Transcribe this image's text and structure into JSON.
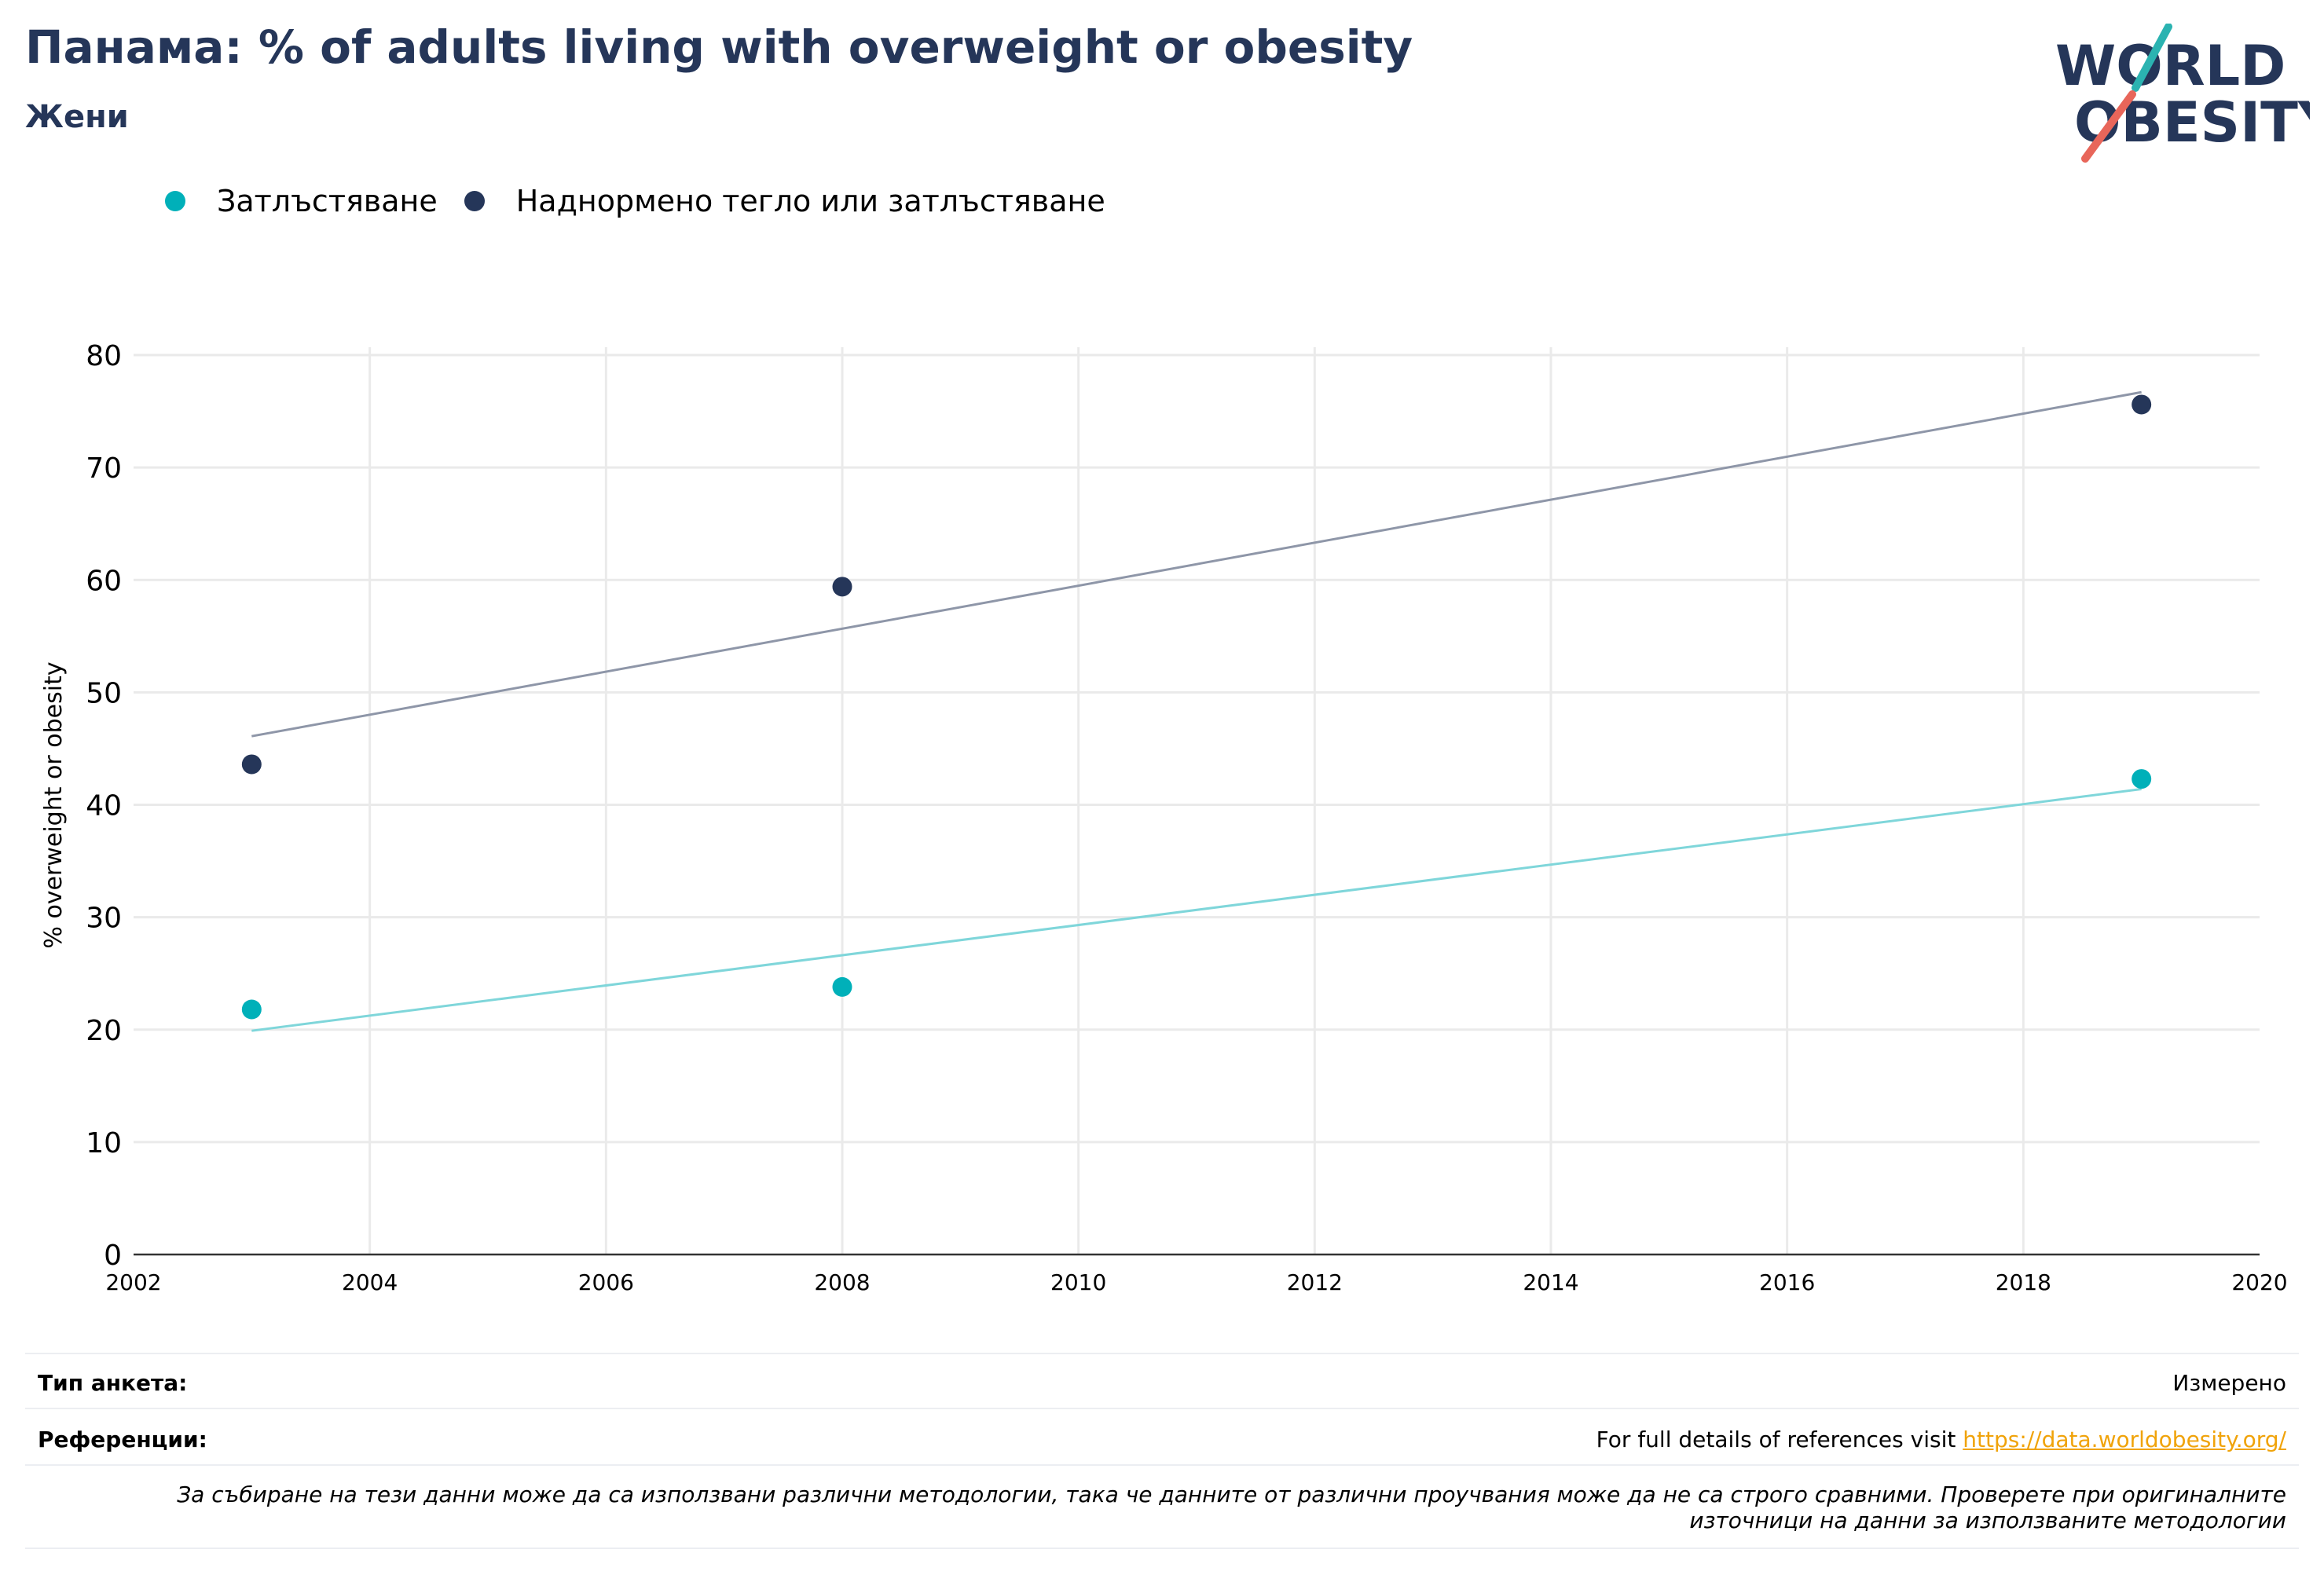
{
  "header": {
    "title": "Панама: % of adults living with overweight or obesity",
    "subtitle": "Жени"
  },
  "logo": {
    "line1": "WORLD",
    "line2": "OBESITY"
  },
  "colors": {
    "obesity": "#00b0b9",
    "overweight_or_obesity": "#253659",
    "title": "#253659",
    "link": "#f0a30a"
  },
  "chart_data": {
    "type": "scatter",
    "ylabel": "% overweight or obesity",
    "xlim": [
      2002,
      2020
    ],
    "ylim": [
      0,
      80
    ],
    "x_ticks": [
      2002,
      2004,
      2006,
      2008,
      2010,
      2012,
      2014,
      2016,
      2018,
      2020
    ],
    "y_ticks": [
      0,
      10,
      20,
      30,
      40,
      50,
      60,
      70,
      80
    ],
    "grid": true,
    "legend_position": "top-left",
    "series": [
      {
        "name": "Затлъстяване",
        "color": "#00b0b9",
        "trend_color": "#7fd6da",
        "points": [
          {
            "x": 2003,
            "y": 21.8
          },
          {
            "x": 2008,
            "y": 23.8
          },
          {
            "x": 2019,
            "y": 42.3
          }
        ],
        "trend": [
          {
            "x": 2003,
            "y": 19.9
          },
          {
            "x": 2019,
            "y": 41.4
          }
        ]
      },
      {
        "name": "Наднормено тегло или затлъстяване",
        "color": "#253659",
        "trend_color": "#8e96a8",
        "points": [
          {
            "x": 2003,
            "y": 43.6
          },
          {
            "x": 2008,
            "y": 59.4
          },
          {
            "x": 2019,
            "y": 75.6
          }
        ],
        "trend": [
          {
            "x": 2003,
            "y": 46.1
          },
          {
            "x": 2019,
            "y": 76.7
          }
        ]
      }
    ]
  },
  "footer": {
    "survey_label": "Тип анкета:",
    "survey_value": "Измерено",
    "references_label": "Референции:",
    "references_text": "For full details of references visit ",
    "references_link": "https://data.worldobesity.org/",
    "note": "За събиране на тези данни може да са използвани различни методологии, така че данните от различни проучвания може да не са строго сравними. Проверете при оригиналните източници на данни за използваните методологии"
  }
}
